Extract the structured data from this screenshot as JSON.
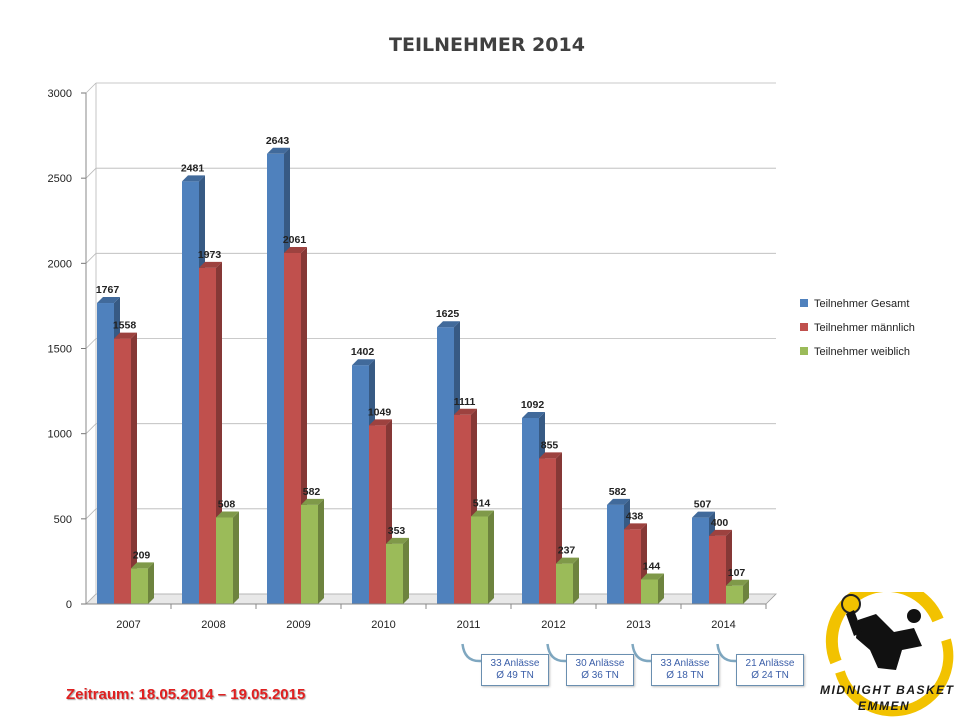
{
  "chart_data": {
    "type": "bar",
    "title": "TEILNEHMER 2014",
    "categories": [
      "2007",
      "2008",
      "2009",
      "2010",
      "2011",
      "2012",
      "2013",
      "2014"
    ],
    "series": [
      {
        "name": "Teilnehmer Gesamt",
        "color": "#4f81bd",
        "values": [
          1767,
          2481,
          2643,
          1402,
          1625,
          1092,
          582,
          507
        ]
      },
      {
        "name": "Teilnehmer männlich",
        "color": "#c0504d",
        "values": [
          1558,
          1973,
          2061,
          1049,
          1111,
          855,
          438,
          400
        ]
      },
      {
        "name": "Teilnehmer weiblich",
        "color": "#9bbb59",
        "values": [
          209,
          508,
          582,
          353,
          514,
          237,
          144,
          107
        ]
      }
    ],
    "ylim": [
      0,
      3000
    ],
    "yticks": [
      0,
      500,
      1000,
      1500,
      2000,
      2500,
      3000
    ],
    "grid": true,
    "legend_position": "right",
    "three_d": true
  },
  "annotations": [
    {
      "category": "2011",
      "line1": "33 Anlässe",
      "line2": "Ø 49 TN"
    },
    {
      "category": "2012",
      "line1": "30 Anlässe",
      "line2": "Ø 36 TN"
    },
    {
      "category": "2013",
      "line1": "33 Anlässe",
      "line2": "Ø 18 TN"
    },
    {
      "category": "2014",
      "line1": "21 Anlässe",
      "line2": "Ø 24 TN"
    }
  ],
  "period_text": "Zeitraum: 18.05.2014 – 19.05.2015",
  "logo": {
    "line1": "MIDNIGHT BASKET",
    "line2": "EMMEN"
  }
}
